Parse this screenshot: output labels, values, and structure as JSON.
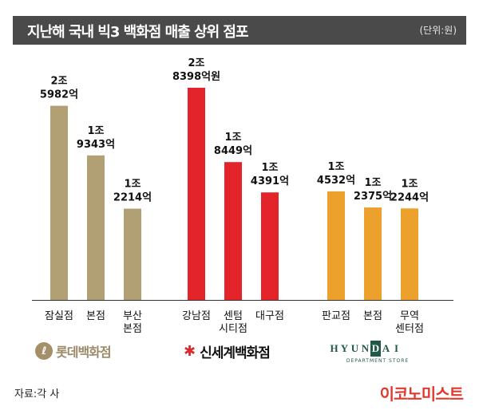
{
  "header": {
    "title": "지난해 국내 빅3 백화점 매출 상위 점포",
    "unit": "(단위:원)"
  },
  "chart_data": {
    "type": "bar",
    "title": "지난해 국내 빅3 백화점 매출 상위 점포",
    "unit": "원",
    "groups": [
      {
        "name": "롯데백화점",
        "color": "#b1a074",
        "bars": [
          {
            "category": [
              "잠실점"
            ],
            "value": 25982,
            "label": [
              "2조",
              "5982억"
            ]
          },
          {
            "category": [
              "본점"
            ],
            "value": 19343,
            "label": [
              "1조",
              "9343억"
            ]
          },
          {
            "category": [
              "부산",
              "본점"
            ],
            "value": 12214,
            "label": [
              "1조",
              "2214억"
            ]
          }
        ]
      },
      {
        "name": "신세계백화점",
        "color": "#e3242b",
        "bars": [
          {
            "category": [
              "강남점"
            ],
            "value": 28398,
            "label": [
              "2조",
              "8398억원"
            ]
          },
          {
            "category": [
              "센텀",
              "시티점"
            ],
            "value": 18449,
            "label": [
              "1조",
              "8449억"
            ]
          },
          {
            "category": [
              "대구점"
            ],
            "value": 14391,
            "label": [
              "1조",
              "4391억"
            ]
          }
        ]
      },
      {
        "name": "현대백화점",
        "color": "#eca12d",
        "bars": [
          {
            "category": [
              "판교점"
            ],
            "value": 14532,
            "label": [
              "1조",
              "4532억"
            ]
          },
          {
            "category": [
              "본점"
            ],
            "value": 12375,
            "label": [
              "1조",
              "2375억"
            ]
          },
          {
            "category": [
              "무역",
              "센터점"
            ],
            "value": 12244,
            "label": [
              "1조",
              "2244억"
            ]
          }
        ]
      }
    ],
    "value_unit": "억원",
    "ylim": [
      0,
      28398
    ]
  },
  "logos": {
    "lotte": {
      "mark": "ℓ",
      "text": "롯데백화점"
    },
    "ssg": {
      "mark": "✱",
      "text": "신세계백화점"
    },
    "hyundai": {
      "letters": [
        "H",
        "Y",
        "U",
        "N",
        "D",
        "A",
        "I"
      ],
      "sub": "DEPARTMENT STORE"
    }
  },
  "footer": {
    "source": "자료:각 사",
    "brand": "이코노미스트"
  },
  "colors": {
    "axis": "#333333",
    "header_bg": "#4a4a4a",
    "brand": "#e03a2e"
  }
}
